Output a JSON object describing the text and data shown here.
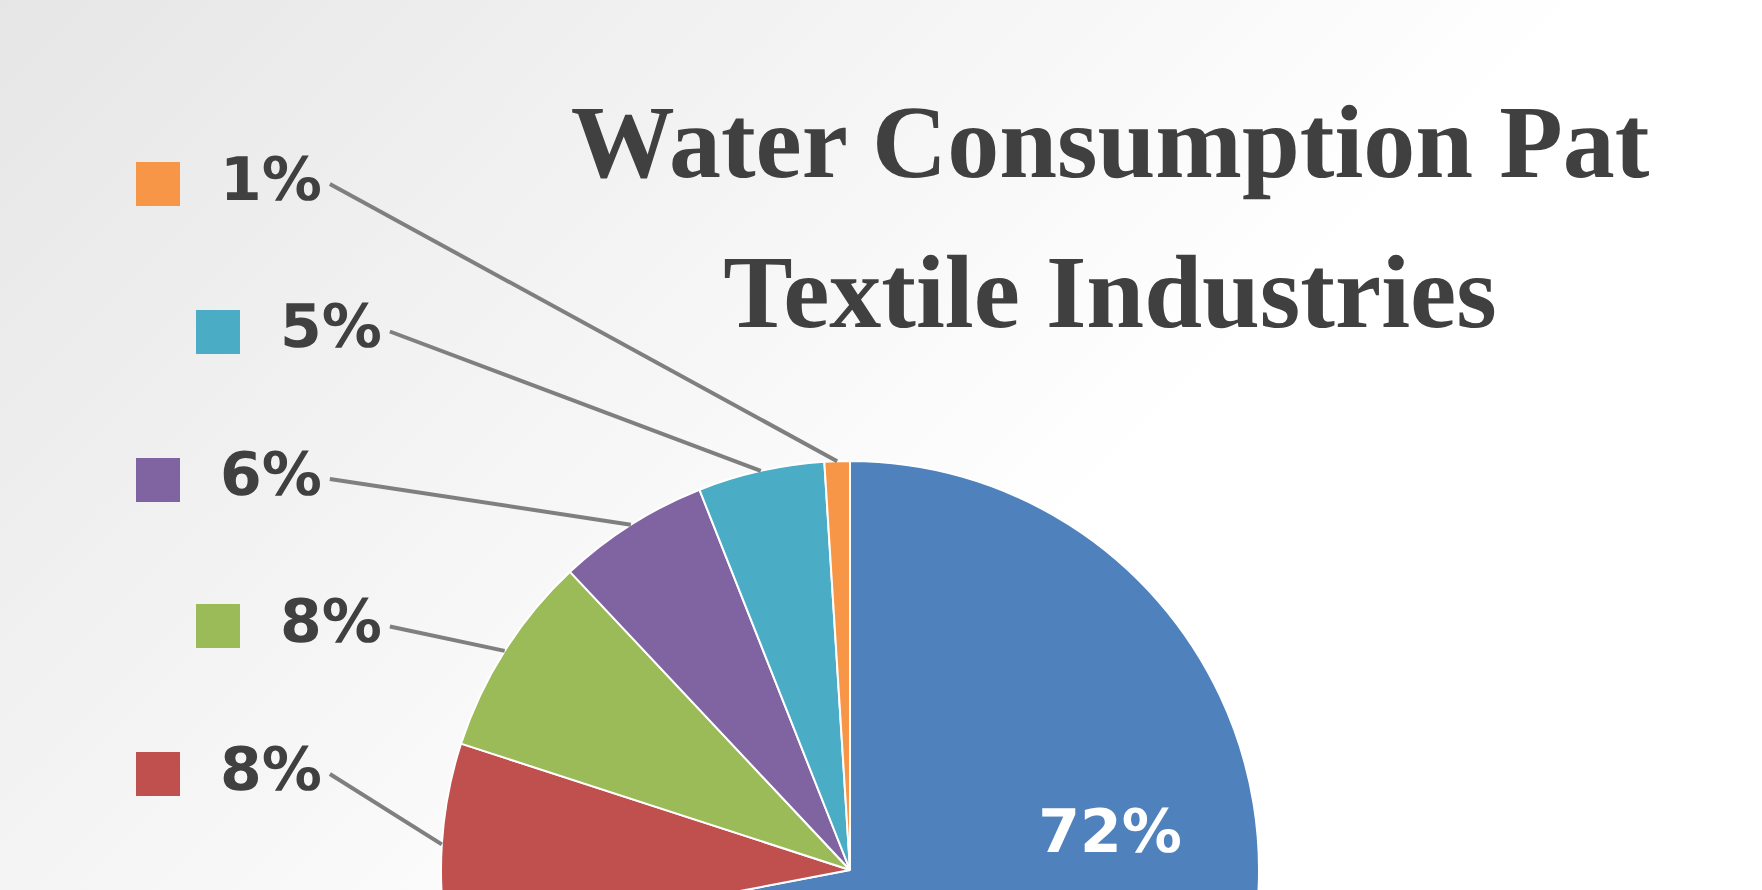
{
  "chart_data": {
    "type": "pie",
    "title": "Water Consumption Pat\nTextile Industries",
    "categories": [
      null,
      null,
      null,
      null,
      null,
      null
    ],
    "values": [
      72,
      8,
      8,
      6,
      5,
      1
    ],
    "colors": [
      "#4f81bd",
      "#c0504d",
      "#9bbb59",
      "#8064a2",
      "#4bacc6",
      "#f79646"
    ],
    "value_labels": [
      "72%",
      "8%",
      "8%",
      "6%",
      "5%",
      "1%"
    ],
    "legend": false
  }
}
